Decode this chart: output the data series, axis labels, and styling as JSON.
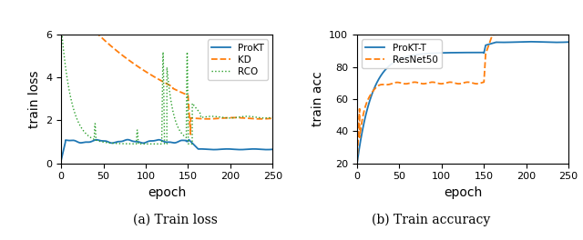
{
  "left": {
    "title": "(a) Train loss",
    "xlabel": "epoch",
    "ylabel": "train loss",
    "xlim": [
      0,
      250
    ],
    "ylim": [
      0,
      6
    ],
    "yticks": [
      0,
      2,
      4,
      6
    ],
    "xticks": [
      0,
      50,
      100,
      150,
      200,
      250
    ],
    "prokt_color": "#1f77b4",
    "kd_color": "#ff7f0e",
    "rco_color": "#2ca02c",
    "legend_labels": [
      "ProKT",
      "KD",
      "RCO"
    ]
  },
  "right": {
    "title": "(b) Train accuracy",
    "xlabel": "epoch",
    "ylabel": "train acc",
    "xlim": [
      0,
      250
    ],
    "ylim": [
      20,
      100
    ],
    "yticks": [
      20,
      40,
      60,
      80,
      100
    ],
    "xticks": [
      0,
      50,
      100,
      150,
      200,
      250
    ],
    "prokt_color": "#1f77b4",
    "resnet_color": "#ff7f0e",
    "legend_labels": [
      "ProKT-T",
      "ResNet50"
    ]
  }
}
